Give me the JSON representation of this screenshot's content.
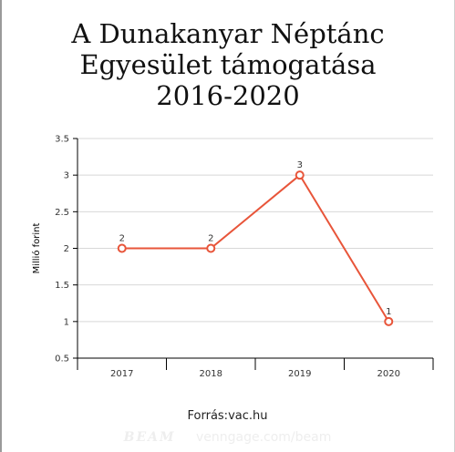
{
  "title_lines": [
    "A Dunakanyar Néptánc",
    "Egyesület támogatása",
    "2016-2020"
  ],
  "source": "Forrás:vac.hu",
  "watermark": {
    "brand": "BEAM",
    "site": "venngage.com/beam"
  },
  "colors": {
    "line": "#e8553a",
    "grid": "#d8d8d8",
    "axis": "#000000",
    "text": "#333333"
  },
  "chart_data": {
    "type": "line",
    "categories": [
      "2017",
      "2018",
      "2019",
      "2020"
    ],
    "series": [
      {
        "values": [
          2,
          2,
          3,
          1
        ],
        "labels": [
          "2",
          "2",
          "3",
          "1"
        ]
      }
    ],
    "ylabel": "Millió forint",
    "ylim": [
      0.5,
      3.5
    ],
    "yticks": [
      0.5,
      1,
      1.5,
      2,
      2.5,
      3,
      3.5
    ],
    "ytick_labels": [
      "0.5",
      "1",
      "1.5",
      "2",
      "2.5",
      "3",
      "3.5"
    ],
    "grid": true,
    "legend": "none"
  }
}
